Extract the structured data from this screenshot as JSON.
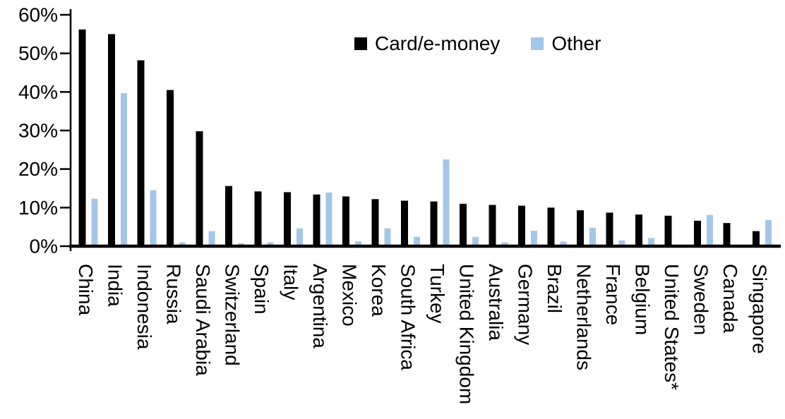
{
  "chart_data": {
    "type": "bar",
    "title": "",
    "xlabel": "",
    "ylabel": "",
    "categories": [
      "China",
      "India",
      "Indonesia",
      "Russia",
      "Saudi Arabia",
      "Switzerland",
      "Spain",
      "Italy",
      "Argentina",
      "Mexico",
      "Korea",
      "South Africa",
      "Turkey",
      "United Kingdom",
      "Australia",
      "Germany",
      "Brazil",
      "Netherlands",
      "France",
      "Belgium",
      "United States*",
      "Sweden",
      "Canada",
      "Singapore"
    ],
    "series": [
      {
        "name": "Card/e-money",
        "color": "#000000",
        "values": [
          56.2,
          55.0,
          48.2,
          40.5,
          29.8,
          15.6,
          14.2,
          14.0,
          13.4,
          12.9,
          12.2,
          11.8,
          11.6,
          11.0,
          10.7,
          10.5,
          10.0,
          9.3,
          8.7,
          8.2,
          7.9,
          6.6,
          6.0,
          3.9
        ]
      },
      {
        "name": "Other",
        "color": "#A3C7E8",
        "values": [
          12.3,
          39.7,
          14.5,
          1.0,
          3.9,
          0.8,
          1.0,
          4.6,
          13.9,
          1.3,
          4.6,
          2.4,
          22.5,
          2.4,
          1.0,
          4.0,
          1.2,
          4.8,
          1.5,
          2.1,
          0.3,
          8.1,
          0,
          6.8
        ]
      }
    ],
    "ylim": [
      0,
      60
    ],
    "yticks": [
      0,
      10,
      20,
      30,
      40,
      50,
      60
    ],
    "ytick_labels": [
      "0%",
      "10%",
      "20%",
      "30%",
      "40%",
      "50%",
      "60%"
    ],
    "grid": false,
    "legend_position": "top-center",
    "x_label_rotation_deg": 90
  },
  "legend": {
    "items": [
      {
        "label": "Card/e-money",
        "color": "#000000"
      },
      {
        "label": "Other",
        "color": "#A3C7E8"
      }
    ]
  }
}
